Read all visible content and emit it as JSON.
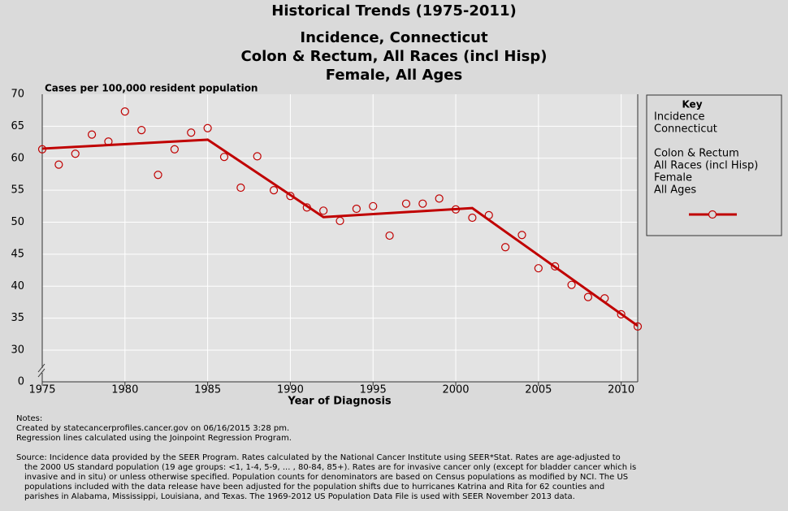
{
  "chart_data": {
    "type": "scatter-trend",
    "title": "Historical Trends (1975-2011)",
    "subtitle": [
      "Incidence, Connecticut",
      "Colon & Rectum, All Races (incl Hisp)",
      "Female, All Ages"
    ],
    "y_label": "Cases per 100,000 resident population",
    "x_label": "Year of Diagnosis",
    "x": [
      1975,
      1976,
      1977,
      1978,
      1979,
      1980,
      1981,
      1982,
      1983,
      1984,
      1985,
      1986,
      1987,
      1988,
      1989,
      1990,
      1991,
      1992,
      1993,
      1994,
      1995,
      1996,
      1997,
      1998,
      1999,
      2000,
      2001,
      2002,
      2003,
      2004,
      2005,
      2006,
      2007,
      2008,
      2009,
      2010,
      2011
    ],
    "series": [
      {
        "color": "#c00000",
        "marker": "circle",
        "values": [
          61.4,
          59.0,
          60.7,
          63.7,
          62.6,
          67.3,
          64.4,
          57.4,
          61.4,
          64.0,
          64.7,
          60.2,
          55.4,
          60.3,
          55.0,
          54.1,
          52.3,
          51.8,
          50.2,
          52.1,
          52.5,
          47.9,
          52.9,
          52.9,
          53.7,
          52.0,
          50.7,
          51.1,
          46.1,
          48.0,
          42.8,
          43.1,
          40.2,
          38.3,
          38.1,
          35.6,
          33.7
        ]
      },
      {
        "color": "#c00000",
        "marker": "line",
        "x": [
          1975,
          1985,
          1992,
          2001,
          2011
        ],
        "values": [
          61.5,
          62.9,
          50.8,
          52.2,
          33.8
        ]
      }
    ],
    "xlim": [
      1975,
      2011
    ],
    "xticks": [
      1975,
      1980,
      1985,
      1990,
      1995,
      2000,
      2005,
      2010
    ],
    "ylim": [
      0,
      70
    ],
    "axis_break": 30,
    "yticks": [
      0,
      30,
      35,
      40,
      45,
      50,
      55,
      60,
      65,
      70
    ],
    "grid": true,
    "key": {
      "title": "Key",
      "groups": [
        [
          "Incidence",
          "Connecticut"
        ],
        [
          "Colon & Rectum",
          "All Races (incl Hisp)",
          "Female",
          "All Ages"
        ]
      ]
    },
    "notes": [
      "Notes:",
      "Created by statecancerprofiles.cancer.gov on 06/16/2015 3:28 pm.",
      "Regression lines calculated using the Joinpoint Regression Program."
    ],
    "source": [
      "Source: Incidence data provided by the SEER Program. Rates calculated by the National Cancer Institute using SEER*Stat. Rates are age-adjusted to",
      "the 2000 US standard population (19 age groups: <1, 1-4, 5-9, ... , 80-84, 85+). Rates are for invasive cancer only (except for bladder cancer which is",
      "invasive and in situ) or unless otherwise specified. Population counts for denominators are based on Census populations as modified by NCI. The US",
      "populations included with the data release have been adjusted for the population shifts due to hurricanes Katrina and Rita for 62 counties and",
      "parishes in Alabama, Mississippi, Louisiana, and Texas. The 1969-2012 US Population Data File is used with SEER November 2013 data."
    ]
  }
}
